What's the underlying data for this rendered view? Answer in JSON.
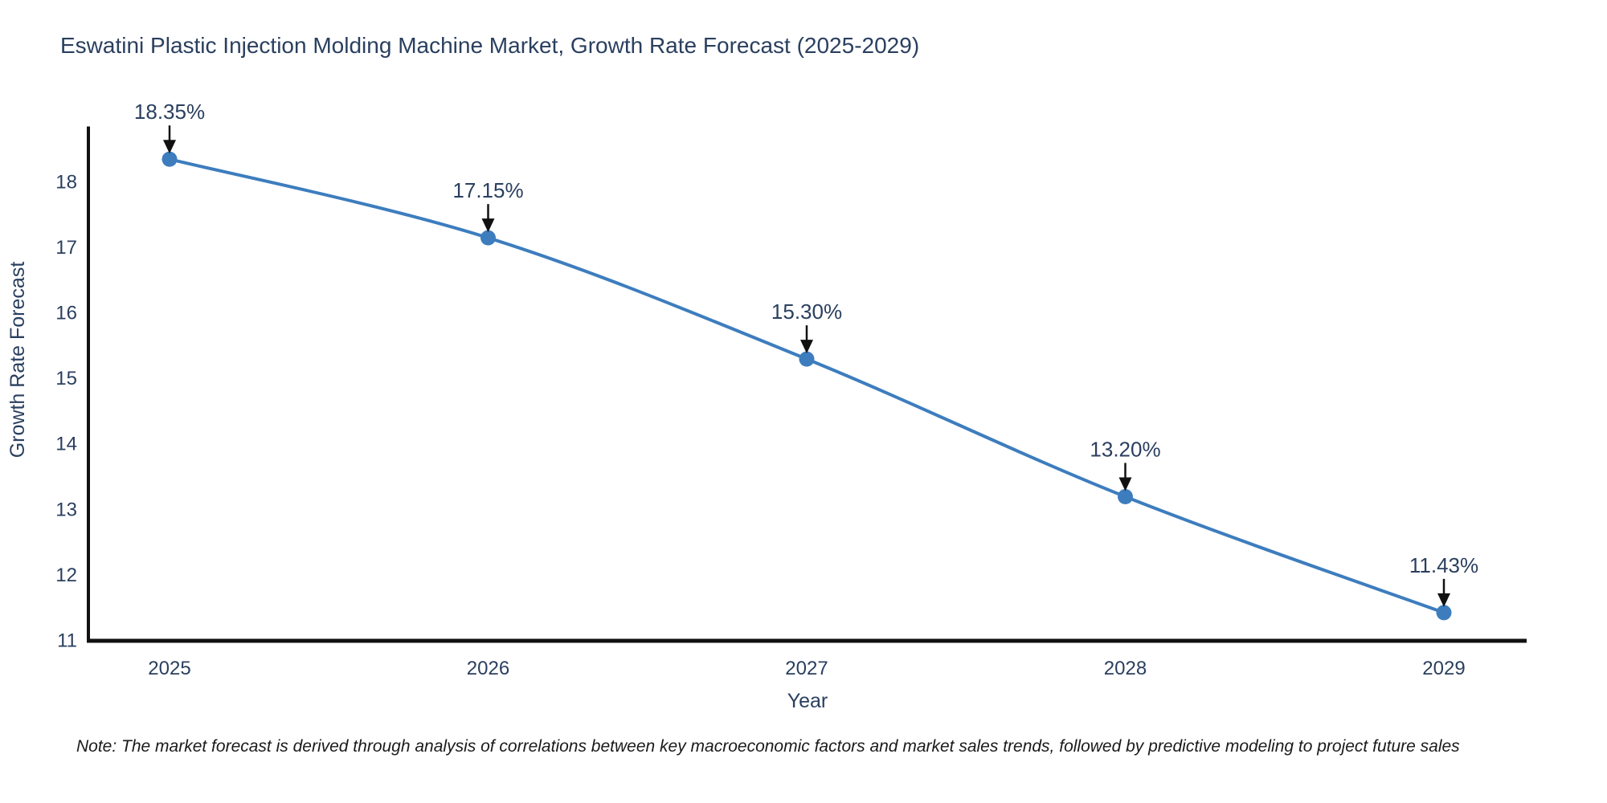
{
  "note": "Note: The market forecast is derived through analysis of correlations between key macroeconomic factors and market sales trends, followed by predictive modeling to project future sales",
  "colors": {
    "accent": "#3d7dbe",
    "text": "#2a3f5f",
    "axis": "#111111",
    "annotation_arrow": "#111111",
    "background": "#ffffff"
  },
  "chart_data": {
    "type": "line",
    "title": "Eswatini Plastic Injection Molding Machine Market, Growth Rate Forecast (2025-2029)",
    "categories": [
      "2025",
      "2026",
      "2027",
      "2028",
      "2029"
    ],
    "values": [
      18.35,
      17.15,
      15.3,
      13.2,
      11.43
    ],
    "data_labels": [
      "18.35%",
      "17.15%",
      "15.30%",
      "13.20%",
      "11.43%"
    ],
    "xlabel": "Year",
    "ylabel": "Growth Rate Forecast",
    "yticks": [
      11,
      12,
      13,
      14,
      15,
      16,
      17,
      18
    ],
    "ylim": [
      11,
      18.85
    ],
    "grid": false,
    "legend": false,
    "line_shape": "spline",
    "marker": "circle"
  }
}
